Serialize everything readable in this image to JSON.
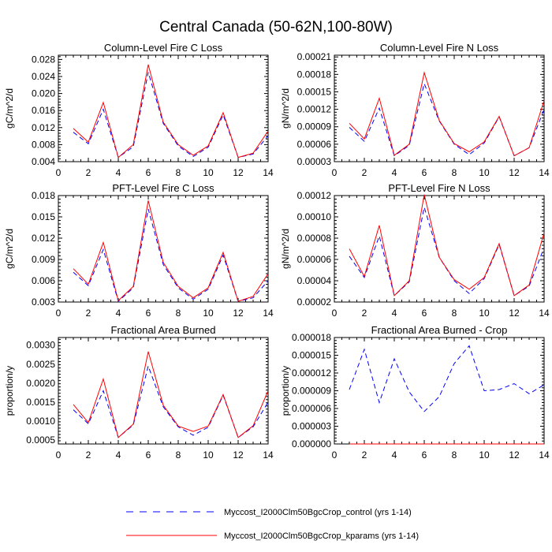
{
  "title": "Central Canada (50-62N,100-80W)",
  "chart_data": [
    {
      "type": "line",
      "title": "Column-Level Fire C Loss",
      "ylabel": "gC/m^2/d",
      "xlabel": "",
      "xlim": [
        0,
        14
      ],
      "ylim": [
        0.004,
        0.029
      ],
      "xticks": [
        0,
        2,
        4,
        6,
        8,
        10,
        12,
        14
      ],
      "yticks": [
        0.004,
        0.008,
        0.012,
        0.016,
        0.02,
        0.024,
        0.028
      ],
      "ytick_labels": [
        "0.004",
        "0.008",
        "0.012",
        "0.016",
        "0.020",
        "0.024",
        "0.028"
      ],
      "x": [
        1,
        2,
        3,
        4,
        5,
        6,
        7,
        8,
        9,
        10,
        11,
        12,
        13,
        14
      ],
      "series": [
        {
          "name": "Myccost_I2000Clm50BgcCrop_control (yrs 1-14)",
          "values": [
            0.0109,
            0.0082,
            0.0163,
            0.005,
            0.0075,
            0.025,
            0.013,
            0.0077,
            0.0052,
            0.0074,
            0.015,
            0.005,
            0.0058,
            0.0101
          ]
        },
        {
          "name": "Myccost_I2000Clm50BgcCrop_kparams (yrs 1-14)",
          "values": [
            0.0118,
            0.0086,
            0.0179,
            0.005,
            0.008,
            0.0268,
            0.0133,
            0.008,
            0.0055,
            0.0077,
            0.0155,
            0.005,
            0.006,
            0.0112
          ]
        }
      ]
    },
    {
      "type": "line",
      "title": "Column-Level Fire N Loss",
      "ylabel": "gN/m^2/d",
      "xlabel": "",
      "xlim": [
        0,
        14
      ],
      "ylim": [
        3e-05,
        0.000213
      ],
      "xticks": [
        0,
        2,
        4,
        6,
        8,
        10,
        12,
        14
      ],
      "yticks": [
        3e-05,
        6e-05,
        9e-05,
        0.00012,
        0.00015,
        0.00018,
        0.00021
      ],
      "ytick_labels": [
        "0.00003",
        "0.00006",
        "0.00009",
        "0.00012",
        "0.00015",
        "0.00018",
        "0.00021"
      ],
      "x": [
        1,
        2,
        3,
        4,
        5,
        6,
        7,
        8,
        9,
        10,
        11,
        12,
        13,
        14
      ],
      "series": [
        {
          "name": "Myccost_I2000Clm50BgcCrop_control (yrs 1-14)",
          "values": [
            8.9e-05,
            6.5e-05,
            0.000122,
            4e-05,
            5.8e-05,
            0.000164,
            0.0001,
            6e-05,
            4.2e-05,
            6.2e-05,
            0.000107,
            4e-05,
            5.4e-05,
            0.00012
          ]
        },
        {
          "name": "Myccost_I2000Clm50BgcCrop_kparams (yrs 1-14)",
          "values": [
            9.6e-05,
            6.9e-05,
            0.000139,
            4.1e-05,
            6e-05,
            0.000183,
            0.000101,
            6.1e-05,
            4.7e-05,
            6.4e-05,
            0.000108,
            4e-05,
            5.4e-05,
            0.000135
          ]
        }
      ]
    },
    {
      "type": "line",
      "title": "PFT-Level Fire C Loss",
      "ylabel": "gC/m^2/d",
      "xlabel": "",
      "xlim": [
        0,
        14
      ],
      "ylim": [
        0.003,
        0.018
      ],
      "xticks": [
        0,
        2,
        4,
        6,
        8,
        10,
        12,
        14
      ],
      "yticks": [
        0.003,
        0.006,
        0.009,
        0.012,
        0.015,
        0.018
      ],
      "ytick_labels": [
        "0.003",
        "0.006",
        "0.009",
        "0.012",
        "0.015",
        "0.018"
      ],
      "x": [
        1,
        2,
        3,
        4,
        5,
        6,
        7,
        8,
        9,
        10,
        11,
        12,
        13,
        14
      ],
      "series": [
        {
          "name": "Myccost_I2000Clm50BgcCrop_control (yrs 1-14)",
          "values": [
            0.0072,
            0.0053,
            0.0104,
            0.0031,
            0.005,
            0.0161,
            0.0083,
            0.005,
            0.0034,
            0.0048,
            0.0096,
            0.0031,
            0.0036,
            0.006
          ]
        },
        {
          "name": "Myccost_I2000Clm50BgcCrop_kparams (yrs 1-14)",
          "values": [
            0.0077,
            0.0055,
            0.0114,
            0.0032,
            0.0052,
            0.0173,
            0.0086,
            0.0052,
            0.0036,
            0.005,
            0.01,
            0.0031,
            0.0038,
            0.007
          ]
        }
      ]
    },
    {
      "type": "line",
      "title": "PFT-Level Fire N Loss",
      "ylabel": "gN/m^2/d",
      "xlabel": "",
      "xlim": [
        0,
        14
      ],
      "ylim": [
        2e-05,
        0.00012
      ],
      "xticks": [
        0,
        2,
        4,
        6,
        8,
        10,
        12,
        14
      ],
      "yticks": [
        2e-05,
        4e-05,
        6e-05,
        8e-05,
        0.0001,
        0.00012
      ],
      "ytick_labels": [
        "0.00002",
        "0.00004",
        "0.00006",
        "0.00008",
        "0.00010",
        "0.00012"
      ],
      "x": [
        1,
        2,
        3,
        4,
        5,
        6,
        7,
        8,
        9,
        10,
        11,
        12,
        13,
        14
      ],
      "series": [
        {
          "name": "Myccost_I2000Clm50BgcCrop_control (yrs 1-14)",
          "values": [
            6.3e-05,
            4.3e-05,
            8.2e-05,
            2.6e-05,
            3.9e-05,
            0.000109,
            6.2e-05,
            4e-05,
            2.8e-05,
            4.2e-05,
            7.4e-05,
            2.6e-05,
            3.5e-05,
            7.1e-05
          ]
        },
        {
          "name": "Myccost_I2000Clm50BgcCrop_kparams (yrs 1-14)",
          "values": [
            7e-05,
            4.4e-05,
            9.2e-05,
            2.6e-05,
            4e-05,
            0.000121,
            6.2e-05,
            4.1e-05,
            3.2e-05,
            4.3e-05,
            7.5e-05,
            2.6e-05,
            3.6e-05,
            8.5e-05
          ]
        }
      ]
    },
    {
      "type": "line",
      "title": "Fractional Area Burned",
      "ylabel": "proportion/y",
      "xlabel": "",
      "xlim": [
        0,
        14
      ],
      "ylim": [
        0.0004,
        0.0032
      ],
      "xticks": [
        0,
        2,
        4,
        6,
        8,
        10,
        12,
        14
      ],
      "yticks": [
        0.0005,
        0.001,
        0.0015,
        0.002,
        0.0025,
        0.003
      ],
      "ytick_labels": [
        "0.0005",
        "0.0010",
        "0.0015",
        "0.0020",
        "0.0025",
        "0.0030"
      ],
      "x": [
        1,
        2,
        3,
        4,
        5,
        6,
        7,
        8,
        9,
        10,
        11,
        12,
        13,
        14
      ],
      "series": [
        {
          "name": "Myccost_I2000Clm50BgcCrop_control (yrs 1-14)",
          "values": [
            0.0013,
            0.00093,
            0.0018,
            0.00057,
            0.0009,
            0.00245,
            0.00138,
            0.00085,
            0.00063,
            0.00084,
            0.00168,
            0.00057,
            0.00085,
            0.0015
          ]
        },
        {
          "name": "Myccost_I2000Clm50BgcCrop_kparams (yrs 1-14)",
          "values": [
            0.00144,
            0.00096,
            0.00211,
            0.00057,
            0.00092,
            0.00283,
            0.00142,
            0.00087,
            0.00073,
            0.00087,
            0.0017,
            0.00057,
            0.00088,
            0.0018
          ]
        }
      ]
    },
    {
      "type": "line",
      "title": "Fractional Area Burned - Crop",
      "ylabel": "proportion/y",
      "xlabel": "",
      "xlim": [
        0,
        14
      ],
      "ylim": [
        0,
        1.8e-05
      ],
      "xticks": [
        0,
        2,
        4,
        6,
        8,
        10,
        12,
        14
      ],
      "yticks": [
        0,
        3e-06,
        6e-06,
        9e-06,
        1.2e-05,
        1.5e-05,
        1.8e-05
      ],
      "ytick_labels": [
        "0.000000",
        "0.000003",
        "0.000006",
        "0.000009",
        "0.000012",
        "0.000015",
        "0.000018"
      ],
      "x": [
        1,
        2,
        3,
        4,
        5,
        6,
        7,
        8,
        9,
        10,
        11,
        12,
        13,
        14
      ],
      "series": [
        {
          "name": "Myccost_I2000Clm50BgcCrop_control (yrs 1-14)",
          "values": [
            9.2e-06,
            1.6e-05,
            7e-06,
            1.44e-05,
            8.8e-06,
            5.5e-06,
            8e-06,
            1.36e-05,
            1.66e-05,
            9e-06,
            9.2e-06,
            1.02e-05,
            8.5e-06,
            1e-05
          ]
        },
        {
          "name": "Myccost_I2000Clm50BgcCrop_kparams (yrs 1-14)",
          "values": [
            0,
            0,
            0,
            0,
            0,
            0,
            0,
            0,
            0,
            0,
            0,
            0,
            0,
            0
          ]
        }
      ]
    }
  ],
  "legend": {
    "placement": "bottom-center",
    "entries": [
      {
        "label": "Myccost_I2000Clm50BgcCrop_control (yrs 1-14)",
        "color": "#0000ff",
        "style": "dashed"
      },
      {
        "label": "Myccost_I2000Clm50BgcCrop_kparams (yrs 1-14)",
        "color": "#ff0000",
        "style": "solid"
      }
    ]
  },
  "colors": {
    "control": "#0000ff",
    "kparams": "#ff0000",
    "axis": "#000000"
  }
}
